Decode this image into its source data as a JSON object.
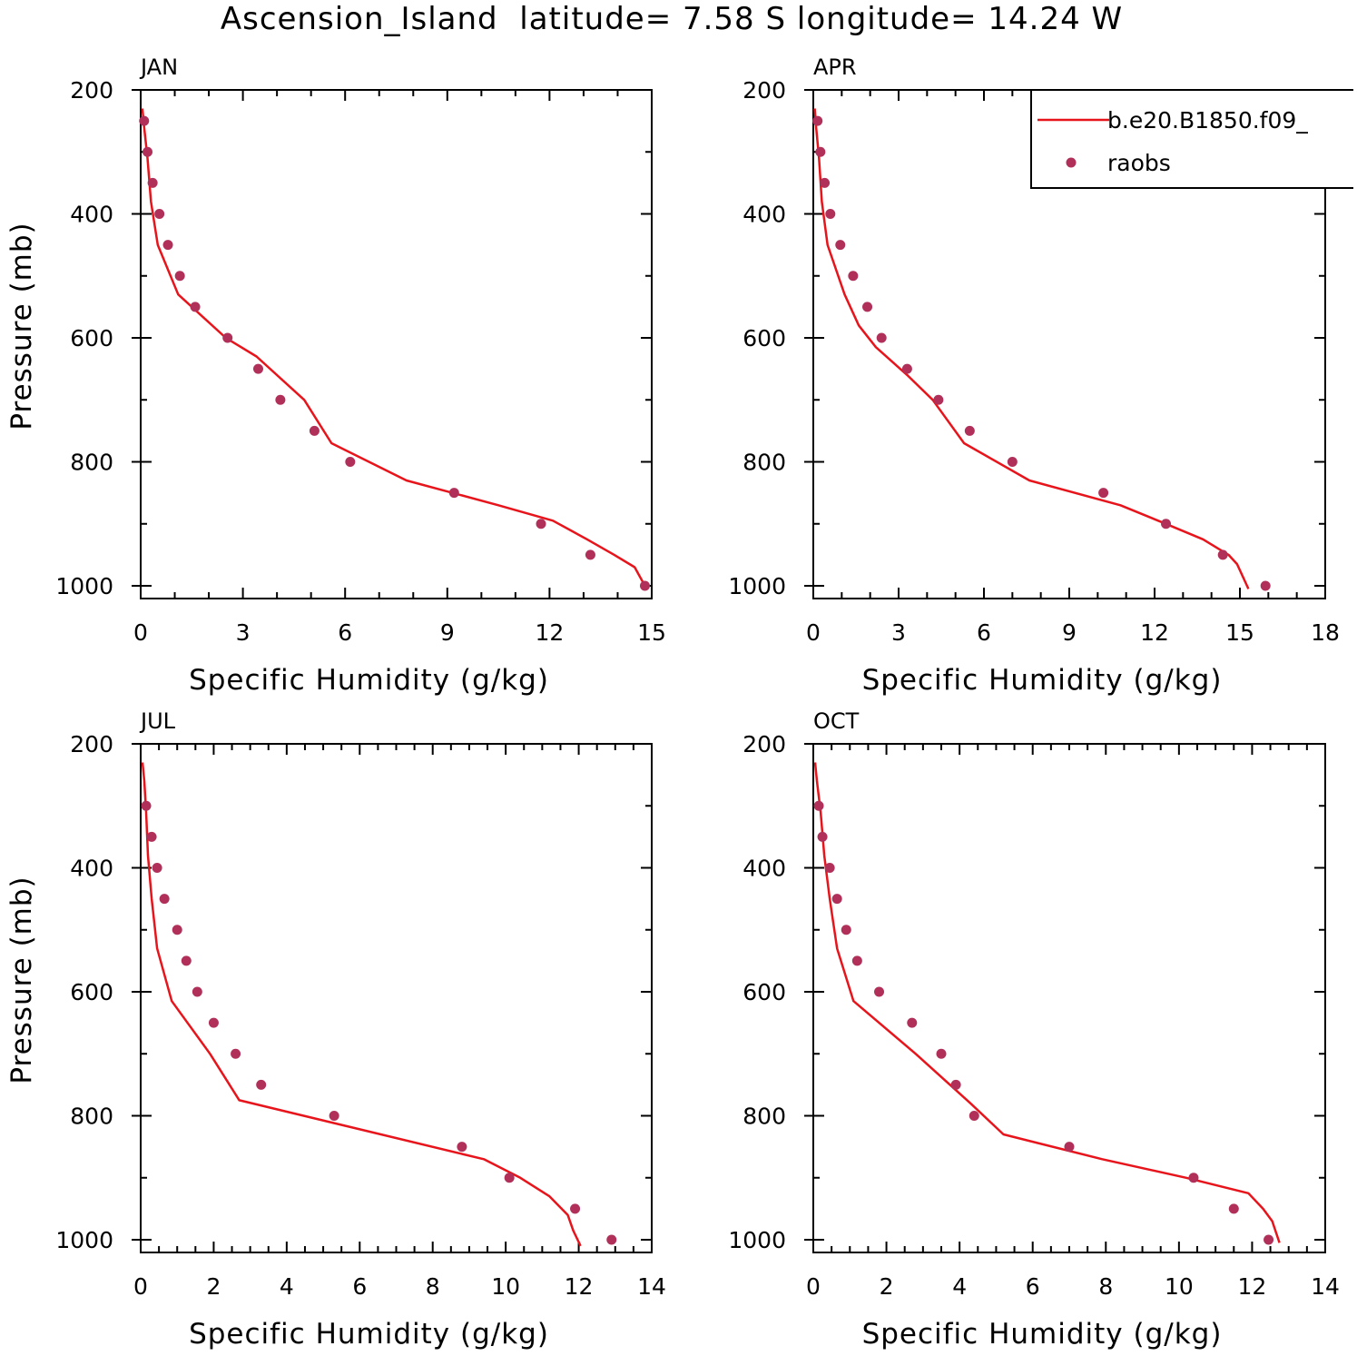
{
  "figure": {
    "title": "Ascension_Island  latitude= 7.58 S longitude= 14.24 W"
  },
  "legend": {
    "entries": [
      {
        "label": "b.e20.B1850.f09_",
        "kind": "line",
        "color": "#e8141b"
      },
      {
        "label": "raobs",
        "kind": "marker",
        "color": "#b0305a"
      }
    ]
  },
  "colors": {
    "model": "#e8141b",
    "obs": "#b0305a",
    "axis": "#000000"
  },
  "chart_data": [
    {
      "type": "line",
      "panel": "JAN",
      "xlabel": "Specific Humidity (g/kg)",
      "ylabel": "Pressure (mb)",
      "xlim": [
        0,
        15
      ],
      "xticks": [
        0,
        3,
        6,
        9,
        12,
        15
      ],
      "ylim": [
        1000,
        200
      ],
      "yticks": [
        200,
        400,
        600,
        800,
        1000
      ],
      "series": [
        {
          "name": "b.e20.B1850.f09_",
          "style": "line",
          "x": [
            0.05,
            0.1,
            0.2,
            0.3,
            0.5,
            1.1,
            1.7,
            2.5,
            3.4,
            4.8,
            5.6,
            7.8,
            10.5,
            12.1,
            13.1,
            13.9,
            14.5,
            14.8
          ],
          "y": [
            230,
            260,
            310,
            380,
            450,
            530,
            560,
            600,
            630,
            700,
            770,
            830,
            870,
            895,
            925,
            950,
            970,
            1000
          ]
        },
        {
          "name": "raobs",
          "style": "marker",
          "x": [
            0.1,
            0.2,
            0.35,
            0.55,
            0.8,
            1.15,
            1.6,
            2.55,
            3.45,
            4.1,
            5.1,
            6.15,
            9.2,
            11.75,
            13.2,
            14.8
          ],
          "y": [
            250,
            300,
            350,
            400,
            450,
            500,
            550,
            600,
            650,
            700,
            750,
            800,
            850,
            900,
            950,
            1000
          ]
        }
      ]
    },
    {
      "type": "line",
      "panel": "APR",
      "xlabel": "Specific Humidity (g/kg)",
      "ylabel": "",
      "xlim": [
        0,
        18
      ],
      "xticks": [
        0,
        3,
        6,
        9,
        12,
        15,
        18
      ],
      "ylim": [
        1000,
        200
      ],
      "yticks": [
        200,
        400,
        600,
        800,
        1000
      ],
      "series": [
        {
          "name": "b.e20.B1850.f09_",
          "style": "line",
          "x": [
            0.05,
            0.1,
            0.2,
            0.3,
            0.5,
            1.1,
            1.6,
            2.2,
            3.3,
            4.2,
            5.3,
            7.6,
            10.8,
            12.4,
            13.7,
            14.6,
            14.9,
            15.3
          ],
          "y": [
            230,
            260,
            310,
            380,
            450,
            530,
            580,
            615,
            660,
            700,
            770,
            830,
            870,
            900,
            925,
            950,
            965,
            1005
          ]
        },
        {
          "name": "raobs",
          "style": "marker",
          "x": [
            0.15,
            0.25,
            0.4,
            0.6,
            0.95,
            1.4,
            1.9,
            2.4,
            3.3,
            4.4,
            5.5,
            7.0,
            10.2,
            12.4,
            14.4,
            15.9
          ],
          "y": [
            250,
            300,
            350,
            400,
            450,
            500,
            550,
            600,
            650,
            700,
            750,
            800,
            850,
            900,
            950,
            1000
          ]
        }
      ]
    },
    {
      "type": "line",
      "panel": "JUL",
      "xlabel": "Specific Humidity (g/kg)",
      "ylabel": "Pressure (mb)",
      "xlim": [
        0,
        14
      ],
      "xticks": [
        0,
        2,
        4,
        6,
        8,
        10,
        12,
        14
      ],
      "ylim": [
        1000,
        200
      ],
      "yticks": [
        200,
        400,
        600,
        800,
        1000
      ],
      "series": [
        {
          "name": "b.e20.B1850.f09_",
          "style": "line",
          "x": [
            0.05,
            0.1,
            0.15,
            0.2,
            0.3,
            0.45,
            0.85,
            1.9,
            2.7,
            9.4,
            10.4,
            11.2,
            11.7,
            11.85,
            12.05
          ],
          "y": [
            230,
            260,
            310,
            380,
            450,
            530,
            615,
            700,
            775,
            870,
            900,
            930,
            960,
            985,
            1010
          ]
        },
        {
          "name": "raobs",
          "style": "marker",
          "x": [
            0.15,
            0.3,
            0.45,
            0.65,
            1.0,
            1.25,
            1.55,
            2.0,
            2.6,
            3.3,
            5.3,
            8.8,
            10.1,
            11.9,
            12.9
          ],
          "y": [
            300,
            350,
            400,
            450,
            500,
            550,
            600,
            650,
            700,
            750,
            800,
            850,
            900,
            950,
            1000
          ]
        }
      ]
    },
    {
      "type": "line",
      "panel": "OCT",
      "xlabel": "Specific Humidity (g/kg)",
      "ylabel": "",
      "xlim": [
        0,
        14
      ],
      "xticks": [
        0,
        2,
        4,
        6,
        8,
        10,
        12,
        14
      ],
      "ylim": [
        1000,
        200
      ],
      "yticks": [
        200,
        400,
        600,
        800,
        1000
      ],
      "series": [
        {
          "name": "b.e20.B1850.f09_",
          "style": "line",
          "x": [
            0.05,
            0.1,
            0.2,
            0.3,
            0.45,
            0.65,
            1.1,
            2.8,
            4.3,
            5.2,
            7.9,
            10.2,
            11.9,
            12.3,
            12.55,
            12.75
          ],
          "y": [
            230,
            260,
            310,
            380,
            450,
            530,
            615,
            700,
            780,
            830,
            870,
            900,
            925,
            950,
            970,
            1005
          ]
        },
        {
          "name": "raobs",
          "style": "marker",
          "x": [
            0.15,
            0.25,
            0.45,
            0.65,
            0.9,
            1.2,
            1.8,
            2.7,
            3.5,
            3.9,
            4.4,
            7.0,
            10.4,
            11.5,
            12.45
          ],
          "y": [
            300,
            350,
            400,
            450,
            500,
            550,
            600,
            650,
            700,
            750,
            800,
            850,
            900,
            950,
            1000
          ]
        }
      ]
    }
  ]
}
